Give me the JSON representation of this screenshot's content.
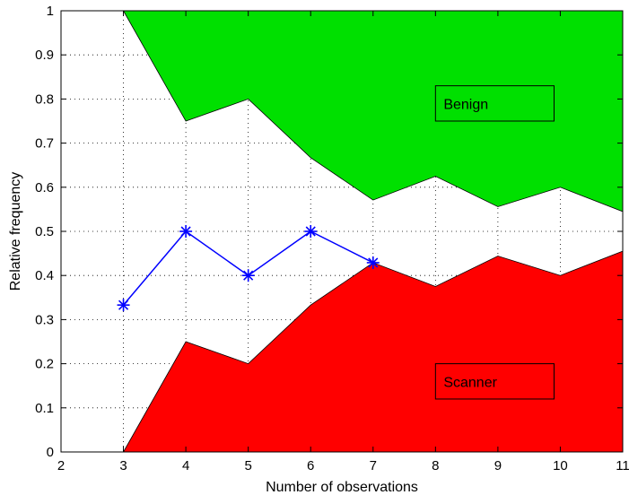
{
  "chart_data": {
    "type": "area",
    "xlabel": "Number of observations",
    "ylabel": "Relative frequency",
    "xlim": [
      2,
      11
    ],
    "ylim": [
      0,
      1
    ],
    "xticks": [
      "2",
      "3",
      "4",
      "5",
      "6",
      "7",
      "8",
      "9",
      "10",
      "11"
    ],
    "yticks": [
      "0",
      "0.1",
      "0.2",
      "0.3",
      "0.4",
      "0.5",
      "0.6",
      "0.7",
      "0.8",
      "0.9",
      "1"
    ],
    "grid": true,
    "x": [
      3,
      4,
      5,
      6,
      7,
      8,
      9,
      10,
      11
    ],
    "benign_lower_bound": [
      1.0,
      0.75,
      0.8,
      0.667,
      0.571,
      0.625,
      0.556,
      0.6,
      0.545
    ],
    "scanner_upper_bound": [
      0.0,
      0.25,
      0.2,
      0.333,
      0.429,
      0.375,
      0.444,
      0.4,
      0.455
    ],
    "series": [
      {
        "x": [
          3,
          4,
          5,
          6,
          7
        ],
        "values": [
          0.333,
          0.5,
          0.4,
          0.5,
          0.429
        ],
        "color": "#0000ff",
        "marker": "asterisk"
      }
    ],
    "regions": [
      {
        "name": "Benign",
        "color": "#00e000"
      },
      {
        "name": "Scanner",
        "color": "#ff0000"
      }
    ]
  }
}
